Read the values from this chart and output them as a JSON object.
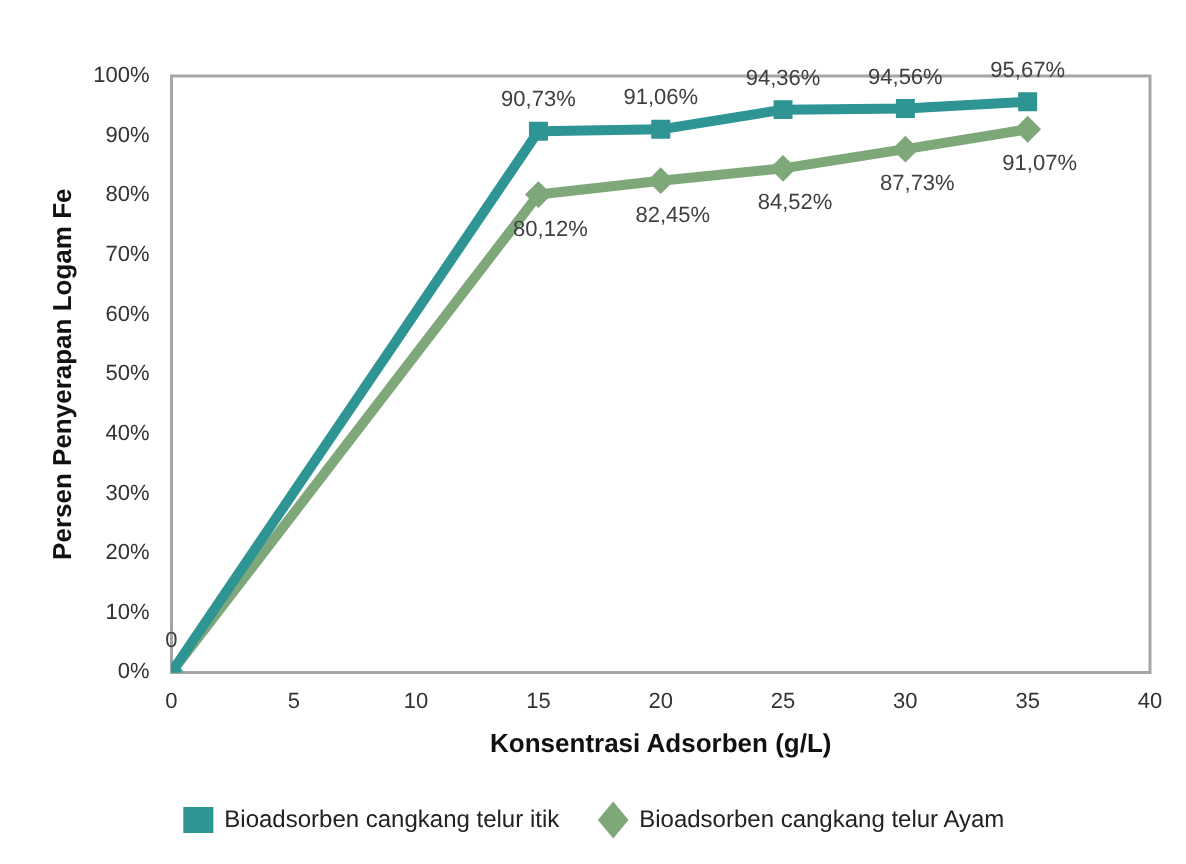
{
  "chart_data": {
    "type": "line",
    "xlabel": "Konsentrasi Adsorben (g/L)",
    "ylabel": "Persen Penyerapan Logam Fe",
    "x": [
      0,
      15,
      20,
      25,
      30,
      35
    ],
    "series": [
      {
        "name": "Bioadsorben cangkang telur itik",
        "color": "#2e9494",
        "marker": "square",
        "values": [
          0,
          90.73,
          91.06,
          94.36,
          94.56,
          95.67
        ],
        "value_labels": [
          "0",
          "90,73%",
          "91,06%",
          "94,36%",
          "94,56%",
          "95,67%"
        ]
      },
      {
        "name": "Bioadsorben cangkang telur Ayam",
        "color": "#7fa87a",
        "marker": "diamond",
        "values": [
          0,
          80.12,
          82.45,
          84.52,
          87.73,
          91.07
        ],
        "value_labels": [
          null,
          "80,12%",
          "82,45%",
          "84,52%",
          "87,73%",
          "91,07%"
        ]
      }
    ],
    "xlim": [
      0,
      40
    ],
    "xticks": [
      0,
      5,
      10,
      15,
      20,
      25,
      30,
      35,
      40
    ],
    "ylim": [
      0,
      100
    ],
    "yticks": [
      {
        "value": 0,
        "label": "0%"
      },
      {
        "value": 10,
        "label": "10%"
      },
      {
        "value": 20,
        "label": "20%"
      },
      {
        "value": 30,
        "label": "30%"
      },
      {
        "value": 40,
        "label": "40%"
      },
      {
        "value": 50,
        "label": "50%"
      },
      {
        "value": 60,
        "label": "60%"
      },
      {
        "value": 70,
        "label": "70%"
      },
      {
        "value": 80,
        "label": "80%"
      },
      {
        "value": 90,
        "label": "90%"
      },
      {
        "value": 100,
        "label": "100%"
      }
    ],
    "grid": false,
    "legend": "bottom",
    "line_style": "solid"
  }
}
